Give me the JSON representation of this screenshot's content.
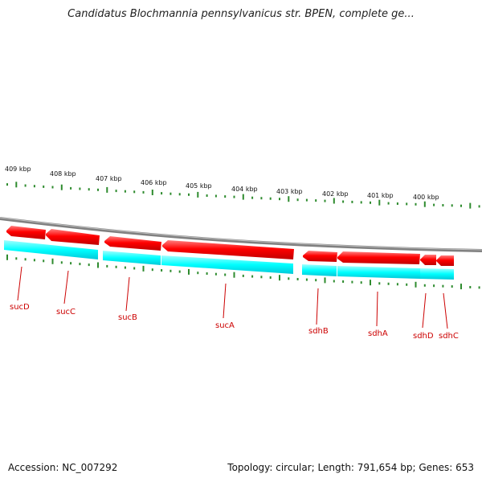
{
  "title": "Candidatus Blochmannia pennsylvanicus str. BPEN, complete ge...",
  "footer": {
    "accession": "Accession: NC_007292",
    "summary": "Topology: circular; Length: 791,654 bp; Genes: 653"
  },
  "scale": {
    "unit": "kbp",
    "labels": [
      "409 kbp",
      "408 kbp",
      "407 kbp",
      "406 kbp",
      "405 kbp",
      "404 kbp",
      "403 kbp",
      "402 kbp",
      "401 kbp",
      "400 kbp"
    ]
  },
  "genes": [
    {
      "name": "sucD"
    },
    {
      "name": "sucC"
    },
    {
      "name": "sucB"
    },
    {
      "name": "sucA"
    },
    {
      "name": "sdhB"
    },
    {
      "name": "sdhA"
    },
    {
      "name": "sdhD"
    },
    {
      "name": "sdhC"
    }
  ],
  "colors": {
    "gene_fill": "#ff0000",
    "cds_fill": "#00ffff",
    "backbone": "#808080",
    "ticks": "#2e8b2e",
    "label": "#cc0000"
  }
}
